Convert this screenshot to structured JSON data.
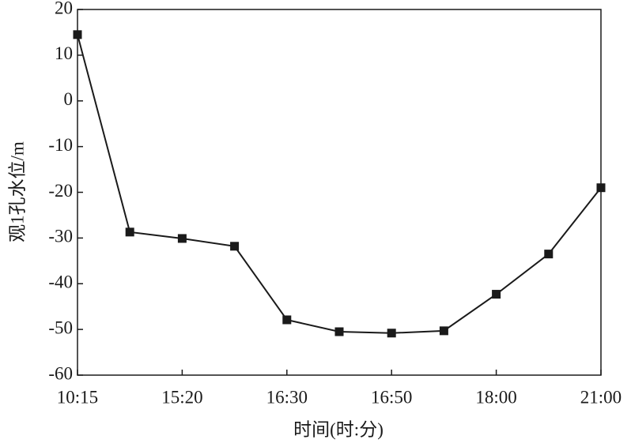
{
  "chart_data": {
    "type": "line",
    "x_label": "时间(时:分)",
    "y_label": "观1孔水位/m",
    "categories": [
      "10:15",
      null,
      "15:20",
      null,
      "16:30",
      null,
      "16:50",
      null,
      "18:00",
      null,
      "21:00"
    ],
    "series": [
      {
        "name": "观1孔水位",
        "color": "#1a1a1a",
        "values": [
          14.5,
          -28.7,
          -30.1,
          -31.8,
          -47.9,
          -50.5,
          -50.8,
          -50.3,
          -42.3,
          -33.5,
          -19.0
        ]
      }
    ],
    "ylim": [
      -60,
      20
    ],
    "yticks": [
      -60,
      -50,
      -40,
      -30,
      -20,
      -10,
      0,
      10,
      20
    ]
  }
}
